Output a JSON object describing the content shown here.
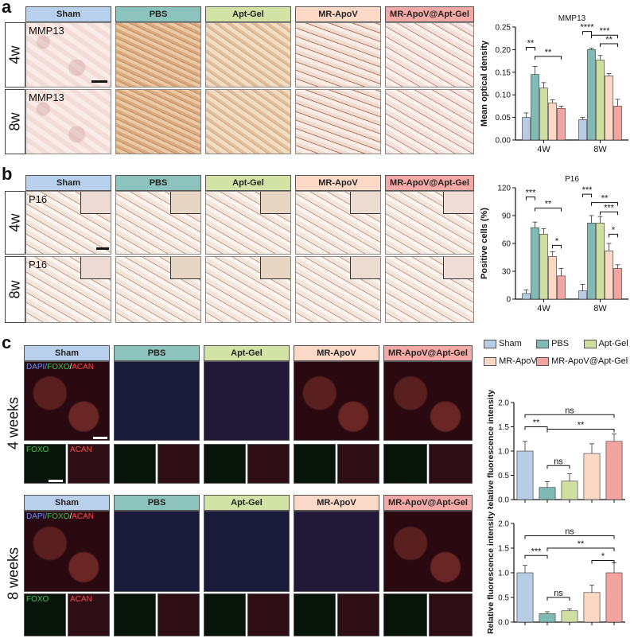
{
  "panels": {
    "a": {
      "letter": "a",
      "rows": [
        "4w",
        "8w"
      ],
      "stain": "MMP13"
    },
    "b": {
      "letter": "b",
      "rows": [
        "4w",
        "8w"
      ],
      "stain": "P16"
    },
    "c": {
      "letter": "c",
      "rows": [
        "4 weeks",
        "8 weeks"
      ],
      "merge_label": {
        "dapi": "DAPI/",
        "foxo": "FOXO",
        "sep": "/",
        "acan": "ACAN"
      },
      "foxo_label": "FOXO",
      "acan_label": "ACAN"
    }
  },
  "groups": [
    "Sham",
    "PBS",
    "Apt-Gel",
    "MR-ApoV",
    "MR-ApoV@Apt-Gel"
  ],
  "colors": {
    "Sham": "#b7cde6",
    "PBS": "#7fbab4",
    "Apt-Gel": "#cfdfa0",
    "MR-ApoV": "#fbd7c4",
    "MR-ApoV@Apt-Gel": "#f3a3a0",
    "hdr_Sham": "#b9d0ec",
    "hdr_PBS": "#8cc3bc",
    "hdr_Apt-Gel": "#d3e3a6",
    "hdr_MR-ApoV": "#fcd9c7",
    "hdr_MR-ApoV@Apt-Gel": "#f5a9a6"
  },
  "legend": [
    "Sham",
    "PBS",
    "Apt-Gel",
    "MR-ApoV",
    "MR-ApoV@Apt-Gel"
  ],
  "chart_data": [
    {
      "type": "bar",
      "title": "MMP13",
      "ylabel": "Mean optical density",
      "categories": [
        "4W",
        "8W"
      ],
      "ylim": [
        0.0,
        0.25
      ],
      "yticks": [
        "0.00",
        "0.05",
        "0.10",
        "0.15",
        "0.20",
        "0.25"
      ],
      "series": [
        {
          "name": "Sham",
          "values": [
            0.05,
            0.045
          ],
          "err": [
            0.01,
            0.005
          ]
        },
        {
          "name": "PBS",
          "values": [
            0.145,
            0.2
          ],
          "err": [
            0.018,
            0.003
          ]
        },
        {
          "name": "Apt-Gel",
          "values": [
            0.115,
            0.177
          ],
          "err": [
            0.012,
            0.01
          ]
        },
        {
          "name": "MR-ApoV",
          "values": [
            0.082,
            0.142
          ],
          "err": [
            0.007,
            0.005
          ]
        },
        {
          "name": "MR-ApoV@Apt-Gel",
          "values": [
            0.07,
            0.075
          ],
          "err": [
            0.005,
            0.015
          ]
        }
      ],
      "sig": [
        {
          "group": 0,
          "from": 0,
          "to": 1,
          "level": 0.205,
          "text": "**"
        },
        {
          "group": 0,
          "from": 1,
          "to": 4,
          "level": 0.185,
          "text": "**"
        },
        {
          "group": 1,
          "from": 0,
          "to": 1,
          "level": 0.24,
          "text": "****"
        },
        {
          "group": 1,
          "from": 1,
          "to": 4,
          "level": 0.232,
          "text": "***"
        },
        {
          "group": 1,
          "from": 2,
          "to": 4,
          "level": 0.213,
          "text": "**"
        }
      ]
    },
    {
      "type": "bar",
      "title": "P16",
      "ylabel": "Positive cells (%)",
      "categories": [
        "4W",
        "8W"
      ],
      "ylim": [
        0,
        120
      ],
      "yticks": [
        "0",
        "30",
        "60",
        "90",
        "120"
      ],
      "series": [
        {
          "name": "Sham",
          "values": [
            6,
            9
          ],
          "err": [
            4,
            7
          ]
        },
        {
          "name": "PBS",
          "values": [
            77,
            82
          ],
          "err": [
            6,
            8
          ]
        },
        {
          "name": "Apt-Gel",
          "values": [
            70,
            82
          ],
          "err": [
            6,
            7
          ]
        },
        {
          "name": "MR-ApoV",
          "values": [
            46,
            52
          ],
          "err": [
            5,
            8
          ]
        },
        {
          "name": "MR-ApoV@Apt-Gel",
          "values": [
            25,
            33
          ],
          "err": [
            8,
            4
          ]
        }
      ],
      "sig": [
        {
          "group": 0,
          "from": 0,
          "to": 1,
          "level": 110,
          "text": "***"
        },
        {
          "group": 0,
          "from": 1,
          "to": 4,
          "level": 98,
          "text": "**"
        },
        {
          "group": 0,
          "from": 3,
          "to": 4,
          "level": 58,
          "text": "*"
        },
        {
          "group": 1,
          "from": 0,
          "to": 1,
          "level": 113,
          "text": "***"
        },
        {
          "group": 1,
          "from": 1,
          "to": 4,
          "level": 104,
          "text": "**"
        },
        {
          "group": 1,
          "from": 2,
          "to": 4,
          "level": 94,
          "text": "***"
        },
        {
          "group": 1,
          "from": 3,
          "to": 4,
          "level": 70,
          "text": "*"
        }
      ]
    },
    {
      "type": "bar",
      "title": "",
      "ylabel": "Relative fluorescence intensity",
      "categories": [
        "Sham",
        "PBS",
        "Apt-Gel",
        "MR-ApoV",
        "MR-ApoV@Apt-Gel"
      ],
      "ylim": [
        0.0,
        2.0
      ],
      "yticks": [
        "0.0",
        "0.5",
        "1.0",
        "1.5",
        "2.0"
      ],
      "values": [
        1.0,
        0.25,
        0.38,
        0.95,
        1.2
      ],
      "err": [
        0.2,
        0.12,
        0.15,
        0.2,
        0.15
      ],
      "sig": [
        {
          "from": 0,
          "to": 4,
          "level": 1.75,
          "text": "ns"
        },
        {
          "from": 0,
          "to": 1,
          "level": 1.5,
          "text": "**"
        },
        {
          "from": 1,
          "to": 4,
          "level": 1.45,
          "text": "**"
        },
        {
          "from": 1,
          "to": 2,
          "level": 0.7,
          "text": "ns"
        }
      ]
    },
    {
      "type": "bar",
      "title": "",
      "ylabel": "Relative fluorescence intensity",
      "categories": [
        "Sham",
        "PBS",
        "Apt-Gel",
        "MR-ApoV",
        "MR-ApoV@Apt-Gel"
      ],
      "ylim": [
        0.0,
        2.0
      ],
      "yticks": [
        "0.0",
        "0.5",
        "1.0",
        "1.5",
        "2.0"
      ],
      "values": [
        1.0,
        0.17,
        0.23,
        0.6,
        1.0
      ],
      "err": [
        0.15,
        0.04,
        0.04,
        0.15,
        0.2
      ],
      "sig": [
        {
          "from": 0,
          "to": 4,
          "level": 1.75,
          "text": "ns"
        },
        {
          "from": 0,
          "to": 1,
          "level": 1.35,
          "text": "***"
        },
        {
          "from": 1,
          "to": 4,
          "level": 1.5,
          "text": "**"
        },
        {
          "from": 3,
          "to": 4,
          "level": 1.25,
          "text": "*"
        },
        {
          "from": 1,
          "to": 2,
          "level": 0.5,
          "text": "ns"
        }
      ]
    }
  ]
}
